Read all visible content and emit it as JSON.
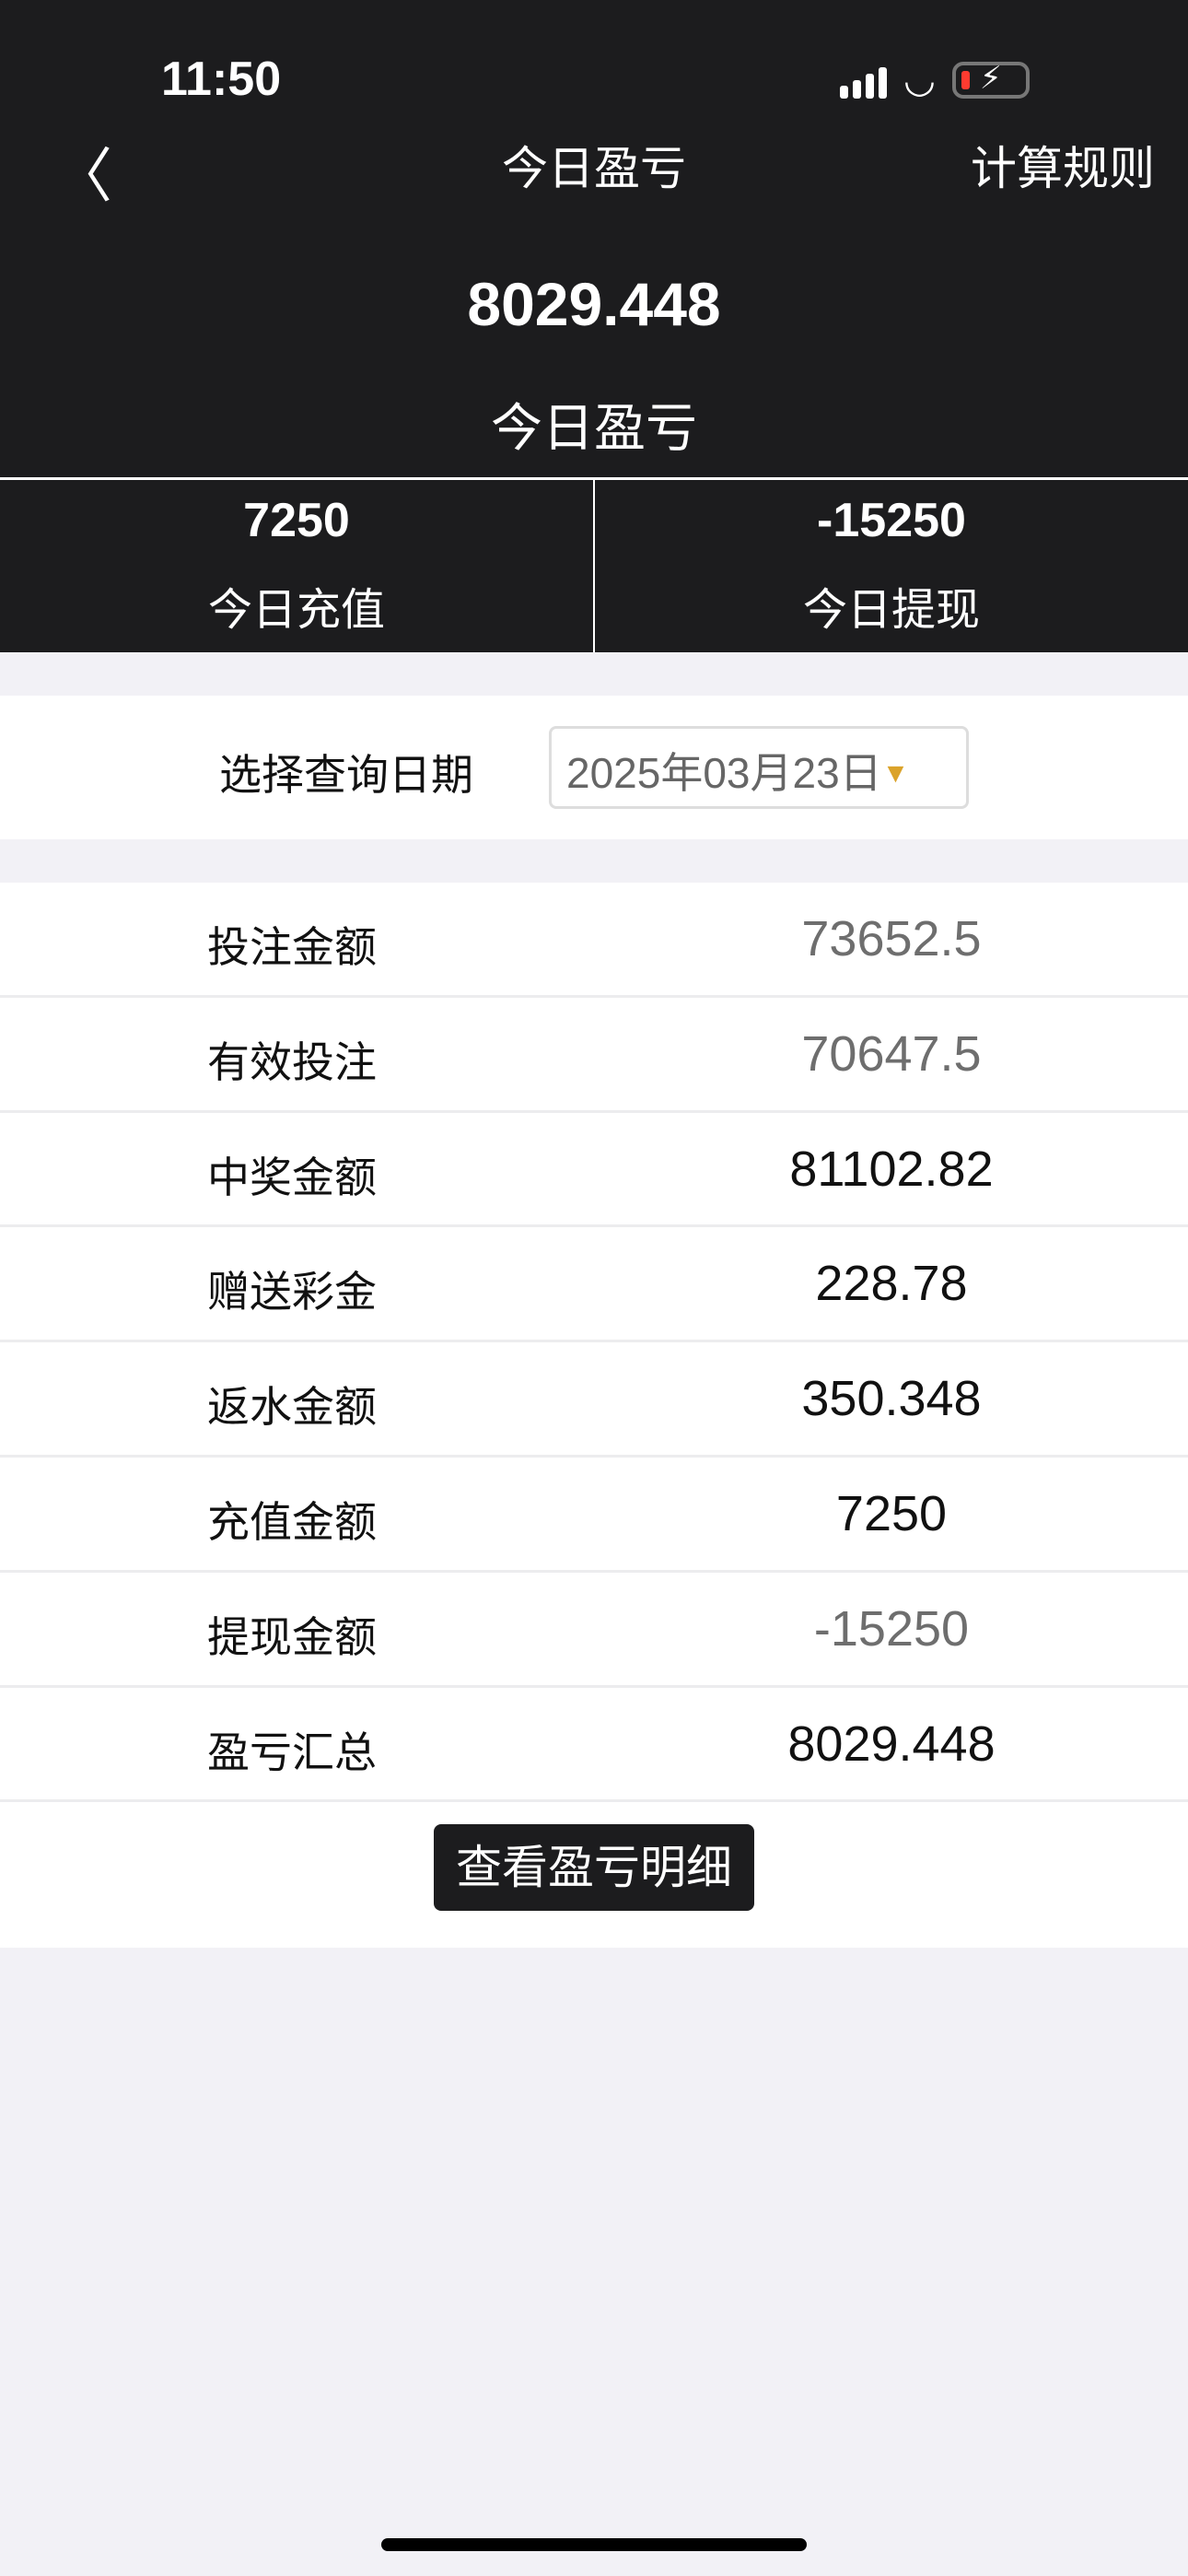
{
  "status_bar": {
    "time": "11:50"
  },
  "nav": {
    "title": "今日盈亏",
    "right_label": "计算规则"
  },
  "summary": {
    "profit": "8029.448",
    "profit_label": "今日盈亏",
    "recharge": "7250",
    "recharge_label": "今日充值",
    "withdraw": "-15250",
    "withdraw_label": "今日提现"
  },
  "date_query": {
    "label": "选择查询日期",
    "value": "2025年03月23日"
  },
  "rows": [
    {
      "label": "投注金额",
      "value": "73652.5",
      "muted": true
    },
    {
      "label": "有效投注",
      "value": "70647.5",
      "muted": true
    },
    {
      "label": "中奖金额",
      "value": "81102.82",
      "muted": false
    },
    {
      "label": "赠送彩金",
      "value": "228.78",
      "muted": false
    },
    {
      "label": "返水金额",
      "value": "350.348",
      "muted": false
    },
    {
      "label": "充值金额",
      "value": "7250",
      "muted": false
    },
    {
      "label": "提现金额",
      "value": "-15250",
      "muted": true
    },
    {
      "label": "盈亏汇总",
      "value": "8029.448",
      "muted": false
    }
  ],
  "detail_button": "查看盈亏明细",
  "colors": {
    "header_bg": "#1c1c1e",
    "dropdown_arrow": "#dba32a",
    "muted_value": "#6e6e6e"
  }
}
